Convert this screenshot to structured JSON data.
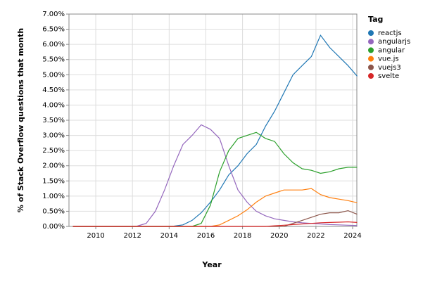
{
  "chart_data": {
    "type": "line",
    "title_legend": "Tag",
    "x_label": "Year",
    "y_label": "% of Stack Overflow questions that month",
    "x": [
      2008.75,
      2009.25,
      2009.75,
      2010.25,
      2010.75,
      2011.25,
      2011.75,
      2012.25,
      2012.75,
      2013.25,
      2013.75,
      2014.25,
      2014.75,
      2015.25,
      2015.75,
      2016.25,
      2016.75,
      2017.25,
      2017.75,
      2018.25,
      2018.75,
      2019.25,
      2019.75,
      2020.25,
      2020.75,
      2021.25,
      2021.75,
      2022.25,
      2022.75,
      2023.25,
      2023.75,
      2024.25
    ],
    "series": [
      {
        "name": "reactjs",
        "color": "#1f77b4",
        "values": [
          0,
          0,
          0,
          0,
          0,
          0,
          0,
          0,
          0,
          0,
          0,
          0.01,
          0.05,
          0.2,
          0.45,
          0.8,
          1.2,
          1.7,
          2.0,
          2.4,
          2.7,
          3.3,
          3.8,
          4.4,
          5.0,
          5.3,
          5.6,
          6.3,
          5.9,
          5.6,
          5.3,
          4.95
        ]
      },
      {
        "name": "angularjs",
        "color": "#9467bd",
        "values": [
          0,
          0,
          0,
          0,
          0,
          0,
          0,
          0.01,
          0.1,
          0.5,
          1.2,
          2.0,
          2.7,
          3.0,
          3.35,
          3.2,
          2.9,
          2.0,
          1.2,
          0.8,
          0.5,
          0.35,
          0.25,
          0.2,
          0.15,
          0.12,
          0.1,
          0.08,
          0.06,
          0.05,
          0.04,
          0.03
        ]
      },
      {
        "name": "angular",
        "color": "#2ca02c",
        "values": [
          0,
          0,
          0,
          0,
          0,
          0,
          0,
          0,
          0,
          0,
          0,
          0,
          0,
          0,
          0.1,
          0.7,
          1.8,
          2.5,
          2.9,
          3.0,
          3.1,
          2.9,
          2.8,
          2.4,
          2.1,
          1.9,
          1.85,
          1.75,
          1.8,
          1.9,
          1.95,
          1.95
        ]
      },
      {
        "name": "vue.js",
        "color": "#ff7f0e",
        "values": [
          0,
          0,
          0,
          0,
          0,
          0,
          0,
          0,
          0,
          0,
          0,
          0,
          0,
          0,
          0,
          0,
          0.05,
          0.2,
          0.35,
          0.55,
          0.8,
          1.0,
          1.1,
          1.2,
          1.2,
          1.2,
          1.25,
          1.05,
          0.95,
          0.9,
          0.85,
          0.78
        ]
      },
      {
        "name": "vuejs3",
        "color": "#8c564b",
        "values": [
          0,
          0,
          0,
          0,
          0,
          0,
          0,
          0,
          0,
          0,
          0,
          0,
          0,
          0,
          0,
          0,
          0,
          0,
          0,
          0,
          0,
          0,
          0,
          0,
          0.1,
          0.2,
          0.3,
          0.4,
          0.45,
          0.45,
          0.52,
          0.4
        ]
      },
      {
        "name": "svelte",
        "color": "#d62728",
        "values": [
          0,
          0,
          0,
          0,
          0,
          0,
          0,
          0,
          0,
          0,
          0,
          0,
          0,
          0,
          0,
          0,
          0,
          0,
          0,
          0,
          0,
          0,
          0.02,
          0.04,
          0.06,
          0.08,
          0.1,
          0.12,
          0.13,
          0.14,
          0.15,
          0.13
        ]
      }
    ],
    "xlim": [
      2008.54,
      2024.23
    ],
    "ylim": [
      0,
      7
    ],
    "xticks": [
      2010,
      2012,
      2014,
      2016,
      2018,
      2020,
      2022,
      2024
    ],
    "yticks": [
      {
        "value": 0,
        "label": "0.00%"
      },
      {
        "value": 0.5,
        "label": "0.50%"
      },
      {
        "value": 1,
        "label": "1.00%"
      },
      {
        "value": 1.5,
        "label": "1.50%"
      },
      {
        "value": 2,
        "label": "2.00%"
      },
      {
        "value": 2.5,
        "label": "2.50%"
      },
      {
        "value": 3,
        "label": "3.00%"
      },
      {
        "value": 3.5,
        "label": "3.50%"
      },
      {
        "value": 4,
        "label": "4.00%"
      },
      {
        "value": 4.5,
        "label": "4.50%"
      },
      {
        "value": 5,
        "label": "5.00%"
      },
      {
        "value": 5.5,
        "label": "5.50%"
      },
      {
        "value": 6,
        "label": "6.00%"
      },
      {
        "value": 6.5,
        "label": "6.50%"
      },
      {
        "value": 7,
        "label": "7.00%"
      }
    ],
    "grid": true
  }
}
